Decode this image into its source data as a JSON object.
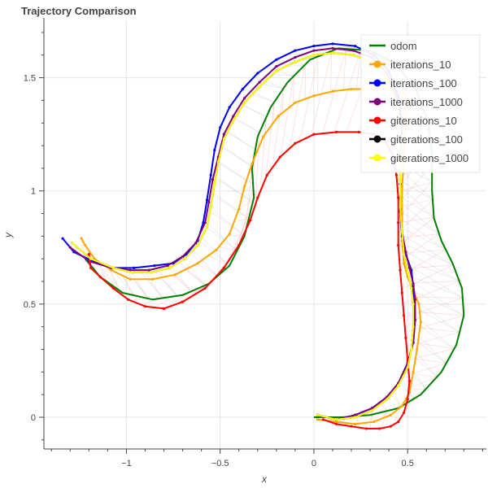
{
  "chart_data": {
    "type": "line",
    "title": "Trajectory Comparison",
    "xlabel": "x",
    "ylabel": "y",
    "xlim": [
      -1.44,
      0.92
    ],
    "ylim": [
      -0.14,
      1.75
    ],
    "grid": true,
    "legend_position": "top-right",
    "x_ticks": [
      -1,
      -0.5,
      0,
      0.5
    ],
    "x_tick_labels": [
      "−1",
      "−0.5",
      "0",
      "0.5"
    ],
    "y_ticks": [
      0,
      0.5,
      1,
      1.5
    ],
    "y_tick_labels": [
      "0",
      "0.5",
      "1",
      "1.5"
    ],
    "series": [
      {
        "name": "odom",
        "color": "#008000",
        "markers": false,
        "points": [
          [
            0,
            0
          ],
          [
            0.15,
            0
          ],
          [
            0.3,
            0.01
          ],
          [
            0.45,
            0.04
          ],
          [
            0.57,
            0.1
          ],
          [
            0.68,
            0.2
          ],
          [
            0.76,
            0.32
          ],
          [
            0.8,
            0.45
          ],
          [
            0.79,
            0.57
          ],
          [
            0.74,
            0.68
          ],
          [
            0.68,
            0.78
          ],
          [
            0.64,
            0.88
          ],
          [
            0.63,
            1
          ],
          [
            0.63,
            1.16
          ],
          [
            0.61,
            1.3
          ],
          [
            0.55,
            1.44
          ],
          [
            0.44,
            1.56
          ],
          [
            0.3,
            1.62
          ],
          [
            0.13,
            1.63
          ],
          [
            -0.02,
            1.58
          ],
          [
            -0.14,
            1.48
          ],
          [
            -0.23,
            1.37
          ],
          [
            -0.3,
            1.24
          ],
          [
            -0.33,
            1.1
          ],
          [
            -0.32,
            0.97
          ],
          [
            -0.37,
            0.8
          ],
          [
            -0.45,
            0.67
          ],
          [
            -0.56,
            0.59
          ],
          [
            -0.7,
            0.54
          ],
          [
            -0.86,
            0.52
          ],
          [
            -1.02,
            0.55
          ],
          [
            -1.14,
            0.62
          ],
          [
            -1.22,
            0.7
          ]
        ]
      },
      {
        "name": "iterations_10",
        "color": "#ffa500",
        "markers": true,
        "points": [
          [
            0.02,
            -0.01
          ],
          [
            0.12,
            -0.02
          ],
          [
            0.22,
            -0.03
          ],
          [
            0.32,
            -0.02
          ],
          [
            0.41,
            0.01
          ],
          [
            0.47,
            0.05
          ],
          [
            0.51,
            0.11
          ],
          [
            0.53,
            0.2
          ],
          [
            0.55,
            0.3
          ],
          [
            0.57,
            0.42
          ],
          [
            0.56,
            0.5
          ],
          [
            0.53,
            0.56
          ],
          [
            0.5,
            0.62
          ],
          [
            0.48,
            0.68
          ],
          [
            0.47,
            0.78
          ],
          [
            0.47,
            0.9
          ],
          [
            0.47,
            1.02
          ],
          [
            0.48,
            1.12
          ],
          [
            0.48,
            1.22
          ],
          [
            0.49,
            1.3
          ],
          [
            0.5,
            1.36
          ],
          [
            0.5,
            1.41
          ],
          [
            0.48,
            1.43
          ],
          [
            0.44,
            1.44
          ],
          [
            0.38,
            1.45
          ],
          [
            0.3,
            1.45
          ],
          [
            0.2,
            1.45
          ],
          [
            0.1,
            1.44
          ],
          [
            0,
            1.42
          ],
          [
            -0.1,
            1.39
          ],
          [
            -0.19,
            1.33
          ],
          [
            -0.27,
            1.24
          ],
          [
            -0.33,
            1.12
          ],
          [
            -0.37,
            1.02
          ],
          [
            -0.4,
            0.92
          ],
          [
            -0.45,
            0.81
          ],
          [
            -0.52,
            0.74
          ],
          [
            -0.62,
            0.68
          ],
          [
            -0.74,
            0.63
          ],
          [
            -0.86,
            0.61
          ],
          [
            -0.98,
            0.61
          ],
          [
            -1.08,
            0.65
          ],
          [
            -1.17,
            0.7
          ],
          [
            -1.22,
            0.76
          ],
          [
            -1.24,
            0.79
          ]
        ]
      },
      {
        "name": "iterations_100",
        "color": "#0000ff",
        "markers": true,
        "points": [
          [
            0.02,
            0.01
          ],
          [
            0.12,
            -0.01
          ],
          [
            0.22,
            0.01
          ],
          [
            0.31,
            0.04
          ],
          [
            0.39,
            0.09
          ],
          [
            0.45,
            0.15
          ],
          [
            0.5,
            0.24
          ],
          [
            0.53,
            0.33
          ],
          [
            0.54,
            0.43
          ],
          [
            0.53,
            0.51
          ],
          [
            0.53,
            0.58
          ],
          [
            0.52,
            0.65
          ],
          [
            0.49,
            0.72
          ],
          [
            0.47,
            0.8
          ],
          [
            0.46,
            0.91
          ],
          [
            0.46,
            1.03
          ],
          [
            0.46,
            1.15
          ],
          [
            0.47,
            1.3
          ],
          [
            0.45,
            1.42
          ],
          [
            0.4,
            1.53
          ],
          [
            0.32,
            1.6
          ],
          [
            0.22,
            1.64
          ],
          [
            0.1,
            1.65
          ],
          [
            0,
            1.64
          ],
          [
            -0.1,
            1.62
          ],
          [
            -0.2,
            1.58
          ],
          [
            -0.3,
            1.52
          ],
          [
            -0.38,
            1.45
          ],
          [
            -0.45,
            1.37
          ],
          [
            -0.5,
            1.28
          ],
          [
            -0.53,
            1.18
          ],
          [
            -0.55,
            1.07
          ],
          [
            -0.57,
            0.96
          ],
          [
            -0.59,
            0.86
          ],
          [
            -0.62,
            0.78
          ],
          [
            -0.68,
            0.72
          ],
          [
            -0.75,
            0.68
          ],
          [
            -0.85,
            0.67
          ],
          [
            -0.96,
            0.66
          ],
          [
            -1.08,
            0.66
          ],
          [
            -1.18,
            0.69
          ],
          [
            -1.28,
            0.73
          ],
          [
            -1.34,
            0.79
          ]
        ]
      },
      {
        "name": "iterations_1000",
        "color": "#800080",
        "markers": true,
        "points": [
          [
            0.02,
            0.01
          ],
          [
            0.12,
            -0.01
          ],
          [
            0.22,
            0.01
          ],
          [
            0.31,
            0.04
          ],
          [
            0.39,
            0.09
          ],
          [
            0.45,
            0.15
          ],
          [
            0.5,
            0.24
          ],
          [
            0.53,
            0.33
          ],
          [
            0.54,
            0.43
          ],
          [
            0.54,
            0.52
          ],
          [
            0.53,
            0.59
          ],
          [
            0.51,
            0.66
          ],
          [
            0.49,
            0.73
          ],
          [
            0.47,
            0.82
          ],
          [
            0.46,
            0.93
          ],
          [
            0.46,
            1.05
          ],
          [
            0.46,
            1.18
          ],
          [
            0.46,
            1.31
          ],
          [
            0.44,
            1.42
          ],
          [
            0.39,
            1.52
          ],
          [
            0.31,
            1.59
          ],
          [
            0.21,
            1.62
          ],
          [
            0.1,
            1.63
          ],
          [
            0,
            1.62
          ],
          [
            -0.1,
            1.59
          ],
          [
            -0.2,
            1.55
          ],
          [
            -0.29,
            1.48
          ],
          [
            -0.37,
            1.41
          ],
          [
            -0.43,
            1.33
          ],
          [
            -0.48,
            1.25
          ],
          [
            -0.51,
            1.15
          ],
          [
            -0.54,
            1.05
          ],
          [
            -0.56,
            0.95
          ],
          [
            -0.58,
            0.86
          ],
          [
            -0.63,
            0.77
          ],
          [
            -0.7,
            0.71
          ],
          [
            -0.78,
            0.67
          ],
          [
            -0.88,
            0.65
          ],
          [
            -0.98,
            0.65
          ],
          [
            -1.08,
            0.66
          ],
          [
            -1.2,
            0.69
          ],
          [
            -1.3,
            0.75
          ]
        ]
      },
      {
        "name": "giterations_10",
        "color": "#ff0000",
        "markers": true,
        "points": [
          [
            0.05,
            -0.01
          ],
          [
            0.12,
            -0.03
          ],
          [
            0.2,
            -0.04
          ],
          [
            0.28,
            -0.05
          ],
          [
            0.35,
            -0.05
          ],
          [
            0.41,
            -0.04
          ],
          [
            0.45,
            -0.02
          ],
          [
            0.48,
            0.02
          ],
          [
            0.5,
            0.08
          ],
          [
            0.51,
            0.16
          ],
          [
            0.5,
            0.25
          ],
          [
            0.49,
            0.35
          ],
          [
            0.48,
            0.45
          ],
          [
            0.47,
            0.55
          ],
          [
            0.46,
            0.65
          ],
          [
            0.45,
            0.76
          ],
          [
            0.45,
            0.86
          ],
          [
            0.45,
            0.97
          ],
          [
            0.44,
            1.07
          ],
          [
            0.42,
            1.16
          ],
          [
            0.38,
            1.22
          ],
          [
            0.32,
            1.25
          ],
          [
            0.24,
            1.26
          ],
          [
            0.12,
            1.26
          ],
          [
            0,
            1.25
          ],
          [
            -0.1,
            1.21
          ],
          [
            -0.18,
            1.15
          ],
          [
            -0.25,
            1.07
          ],
          [
            -0.3,
            0.97
          ],
          [
            -0.34,
            0.87
          ],
          [
            -0.4,
            0.76
          ],
          [
            -0.48,
            0.66
          ],
          [
            -0.58,
            0.57
          ],
          [
            -0.7,
            0.51
          ],
          [
            -0.8,
            0.48
          ],
          [
            -0.9,
            0.49
          ],
          [
            -0.99,
            0.52
          ],
          [
            -1.07,
            0.57
          ],
          [
            -1.14,
            0.62
          ],
          [
            -1.19,
            0.66
          ],
          [
            -1.2,
            0.72
          ]
        ]
      },
      {
        "name": "giterations_100",
        "color": "#000000",
        "markers": true,
        "points": [
          [
            0.02,
            0.01
          ],
          [
            0.12,
            -0.01
          ],
          [
            0.22,
            0
          ],
          [
            0.31,
            0.03
          ],
          [
            0.39,
            0.08
          ],
          [
            0.45,
            0.14
          ],
          [
            0.5,
            0.22
          ],
          [
            0.52,
            0.3
          ],
          [
            0.53,
            0.4
          ],
          [
            0.53,
            0.5
          ],
          [
            0.52,
            0.57
          ],
          [
            0.5,
            0.64
          ],
          [
            0.48,
            0.72
          ],
          [
            0.47,
            0.82
          ],
          [
            0.46,
            0.93
          ],
          [
            0.46,
            1.05
          ],
          [
            0.46,
            1.18
          ],
          [
            0.46,
            1.3
          ],
          [
            0.44,
            1.4
          ],
          [
            0.39,
            1.5
          ],
          [
            0.31,
            1.57
          ],
          [
            0.21,
            1.6
          ],
          [
            0.1,
            1.61
          ],
          [
            0,
            1.6
          ],
          [
            -0.1,
            1.57
          ],
          [
            -0.2,
            1.53
          ],
          [
            -0.29,
            1.46
          ],
          [
            -0.37,
            1.39
          ],
          [
            -0.43,
            1.31
          ],
          [
            -0.48,
            1.23
          ],
          [
            -0.51,
            1.13
          ],
          [
            -0.53,
            1.03
          ],
          [
            -0.55,
            0.93
          ],
          [
            -0.57,
            0.84
          ],
          [
            -0.62,
            0.76
          ],
          [
            -0.69,
            0.7
          ],
          [
            -0.77,
            0.66
          ],
          [
            -0.87,
            0.64
          ],
          [
            -0.97,
            0.64
          ],
          [
            -1.07,
            0.66
          ],
          [
            -1.19,
            0.7
          ],
          [
            -1.29,
            0.77
          ]
        ]
      },
      {
        "name": "giterations_1000",
        "color": "#ffff00",
        "markers": true,
        "points": [
          [
            0.02,
            0.01
          ],
          [
            0.12,
            -0.01
          ],
          [
            0.22,
            0
          ],
          [
            0.31,
            0.03
          ],
          [
            0.39,
            0.08
          ],
          [
            0.45,
            0.14
          ],
          [
            0.5,
            0.22
          ],
          [
            0.52,
            0.3
          ],
          [
            0.53,
            0.4
          ],
          [
            0.53,
            0.5
          ],
          [
            0.52,
            0.57
          ],
          [
            0.5,
            0.64
          ],
          [
            0.48,
            0.72
          ],
          [
            0.47,
            0.82
          ],
          [
            0.46,
            0.93
          ],
          [
            0.46,
            1.05
          ],
          [
            0.46,
            1.18
          ],
          [
            0.46,
            1.3
          ],
          [
            0.44,
            1.4
          ],
          [
            0.39,
            1.5
          ],
          [
            0.31,
            1.57
          ],
          [
            0.21,
            1.6
          ],
          [
            0.1,
            1.61
          ],
          [
            0,
            1.6
          ],
          [
            -0.1,
            1.57
          ],
          [
            -0.2,
            1.53
          ],
          [
            -0.29,
            1.46
          ],
          [
            -0.37,
            1.39
          ],
          [
            -0.43,
            1.31
          ],
          [
            -0.48,
            1.23
          ],
          [
            -0.51,
            1.13
          ],
          [
            -0.53,
            1.03
          ],
          [
            -0.55,
            0.93
          ],
          [
            -0.57,
            0.84
          ],
          [
            -0.62,
            0.76
          ],
          [
            -0.69,
            0.7
          ],
          [
            -0.77,
            0.66
          ],
          [
            -0.87,
            0.64
          ],
          [
            -0.97,
            0.64
          ],
          [
            -1.07,
            0.66
          ],
          [
            -1.19,
            0.7
          ],
          [
            -1.29,
            0.77
          ]
        ]
      }
    ]
  }
}
